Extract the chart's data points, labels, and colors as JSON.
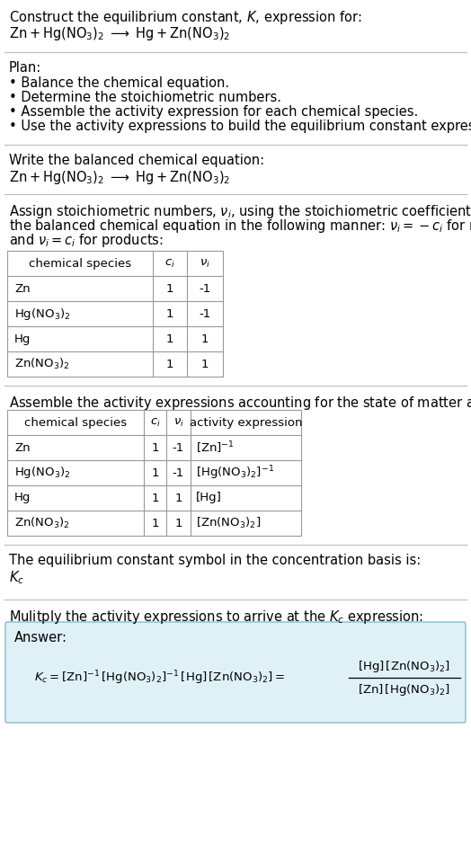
{
  "bg_color": "#ffffff",
  "text_color": "#000000",
  "title_line1": "Construct the equilibrium constant, $K$, expression for:",
  "title_line2": "$\\mathrm{Zn + Hg(NO_3)_2 \\;\\longrightarrow\\; Hg + Zn(NO_3)_2}$",
  "plan_header": "Plan:",
  "plan_bullets": [
    "• Balance the chemical equation.",
    "• Determine the stoichiometric numbers.",
    "• Assemble the activity expression for each chemical species.",
    "• Use the activity expressions to build the equilibrium constant expression."
  ],
  "section2_header": "Write the balanced chemical equation:",
  "section2_eq": "$\\mathrm{Zn + Hg(NO_3)_2 \\;\\longrightarrow\\; Hg + Zn(NO_3)_2}$",
  "section3_intro": "Assign stoichiometric numbers, $\\nu_i$, using the stoichiometric coefficients, $c_i$, from the balanced chemical equation in the following manner: $\\nu_i = -c_i$ for reactants and $\\nu_i = c_i$ for products:",
  "table1_headers": [
    "chemical species",
    "$c_i$",
    "$\\nu_i$"
  ],
  "table1_col1": [
    "Zn",
    "$\\mathrm{Hg(NO_3)_2}$",
    "Hg",
    "$\\mathrm{Zn(NO_3)_2}$"
  ],
  "table1_col2": [
    "1",
    "1",
    "1",
    "1"
  ],
  "table1_col3": [
    "-1",
    "-1",
    "1",
    "1"
  ],
  "section4_header": "Assemble the activity expressions accounting for the state of matter and $\\nu_i$:",
  "table2_headers": [
    "chemical species",
    "$c_i$",
    "$\\nu_i$",
    "activity expression"
  ],
  "table2_col1": [
    "Zn",
    "$\\mathrm{Hg(NO_3)_2}$",
    "Hg",
    "$\\mathrm{Zn(NO_3)_2}$"
  ],
  "table2_col2": [
    "1",
    "1",
    "1",
    "1"
  ],
  "table2_col3": [
    "-1",
    "-1",
    "1",
    "1"
  ],
  "table2_col4": [
    "$[\\mathrm{Zn}]^{-1}$",
    "$[\\mathrm{Hg(NO_3)_2}]^{-1}$",
    "[Hg]",
    "$[\\mathrm{Zn(NO_3)_2}]$"
  ],
  "section5_header": "The equilibrium constant symbol in the concentration basis is:",
  "section5_symbol": "$K_c$",
  "section6_header": "Mulitply the activity expressions to arrive at the $K_c$ expression:",
  "answer_label": "Answer:",
  "answer_box_color": "#dff0f7",
  "answer_box_border": "#88bbcc"
}
